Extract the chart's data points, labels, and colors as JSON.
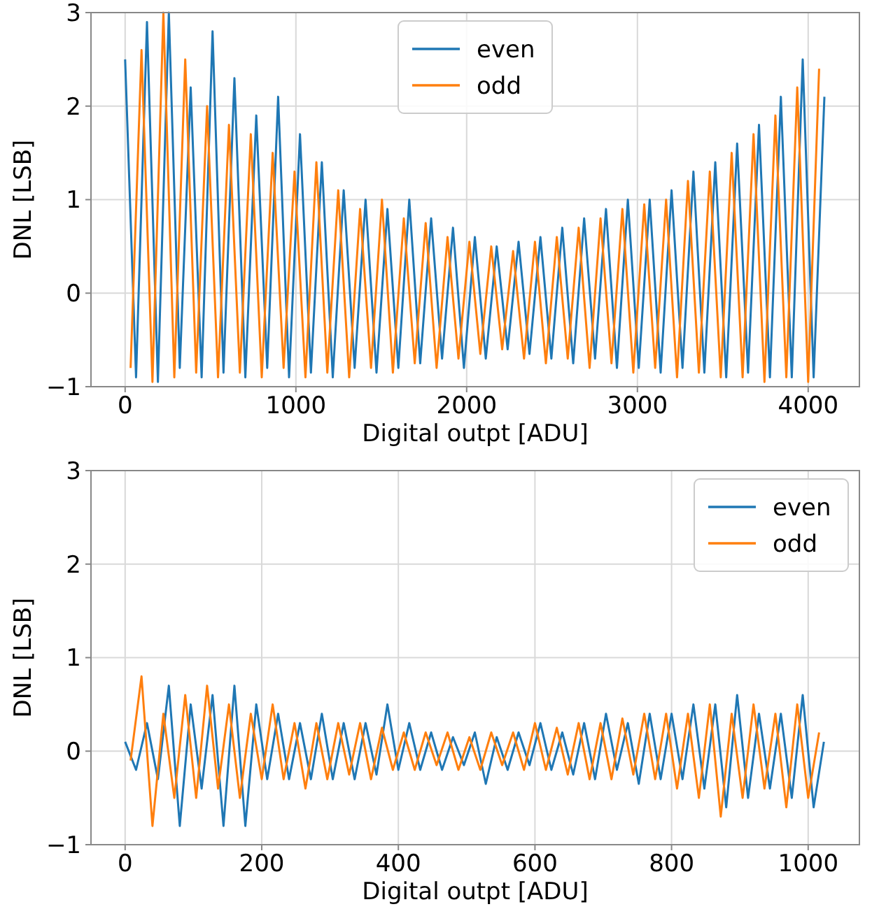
{
  "chart_data": [
    {
      "type": "line",
      "xlabel": "Digital outpt [ADU]",
      "ylabel": "DNL [LSB]",
      "xlim": [
        -200,
        4300
      ],
      "ylim": [
        -1,
        3
      ],
      "xticks": [
        0,
        1000,
        2000,
        3000,
        4000
      ],
      "yticks": [
        -1,
        0,
        1,
        2,
        3
      ],
      "grid": true,
      "legend": "top",
      "series": [
        {
          "name": "even",
          "color": "#1f77b4",
          "x": [
            0,
            64,
            128,
            192,
            256,
            320,
            384,
            448,
            512,
            576,
            640,
            704,
            768,
            832,
            896,
            960,
            1024,
            1088,
            1152,
            1216,
            1280,
            1344,
            1408,
            1472,
            1536,
            1600,
            1664,
            1728,
            1792,
            1856,
            1920,
            1984,
            2048,
            2112,
            2176,
            2240,
            2304,
            2368,
            2432,
            2496,
            2560,
            2624,
            2688,
            2752,
            2816,
            2880,
            2944,
            3008,
            3072,
            3136,
            3200,
            3264,
            3328,
            3392,
            3456,
            3520,
            3584,
            3648,
            3712,
            3776,
            3840,
            3904,
            3968,
            4032,
            4095
          ],
          "values": [
            2.5,
            -0.9,
            2.9,
            -0.95,
            3.0,
            -0.8,
            2.2,
            -0.9,
            2.8,
            -0.85,
            2.3,
            -0.9,
            1.9,
            -0.8,
            2.1,
            -0.9,
            1.7,
            -0.85,
            1.4,
            -0.9,
            1.1,
            -0.8,
            1.0,
            -0.85,
            0.9,
            -0.8,
            1.0,
            -0.75,
            0.8,
            -0.7,
            0.7,
            -0.8,
            0.6,
            -0.7,
            0.5,
            -0.6,
            0.55,
            -0.65,
            0.6,
            -0.7,
            0.7,
            -0.75,
            0.8,
            -0.7,
            0.9,
            -0.8,
            1.0,
            -0.8,
            1.0,
            -0.85,
            1.1,
            -0.8,
            1.3,
            -0.85,
            1.4,
            -0.9,
            1.6,
            -0.85,
            1.8,
            -0.9,
            2.1,
            -0.9,
            2.5,
            -0.9,
            2.1
          ]
        },
        {
          "name": "odd",
          "color": "#ff7f0e",
          "x": [
            32,
            96,
            160,
            224,
            288,
            352,
            416,
            480,
            544,
            608,
            672,
            736,
            800,
            864,
            928,
            992,
            1056,
            1120,
            1184,
            1248,
            1312,
            1376,
            1440,
            1504,
            1568,
            1632,
            1696,
            1760,
            1824,
            1888,
            1952,
            2016,
            2080,
            2144,
            2208,
            2272,
            2336,
            2400,
            2464,
            2528,
            2592,
            2656,
            2720,
            2784,
            2848,
            2912,
            2976,
            3040,
            3104,
            3168,
            3232,
            3296,
            3360,
            3424,
            3488,
            3552,
            3616,
            3680,
            3744,
            3808,
            3872,
            3936,
            4000,
            4064
          ],
          "values": [
            -0.8,
            2.6,
            -0.95,
            3.0,
            -0.9,
            2.5,
            -0.85,
            2.0,
            -0.9,
            1.8,
            -0.85,
            1.7,
            -0.9,
            1.5,
            -0.8,
            1.3,
            -0.9,
            1.4,
            -0.85,
            1.1,
            -0.9,
            0.9,
            -0.8,
            1.0,
            -0.85,
            0.8,
            -0.75,
            0.75,
            -0.8,
            0.6,
            -0.7,
            0.55,
            -0.65,
            0.5,
            -0.6,
            0.45,
            -0.7,
            0.55,
            -0.75,
            0.6,
            -0.7,
            0.7,
            -0.8,
            0.8,
            -0.75,
            0.9,
            -0.85,
            0.95,
            -0.8,
            1.0,
            -0.9,
            1.2,
            -0.85,
            1.3,
            -0.9,
            1.5,
            -0.9,
            1.7,
            -0.95,
            1.9,
            -0.9,
            2.2,
            -0.95,
            2.4
          ]
        }
      ]
    },
    {
      "type": "line",
      "xlabel": "Digital outpt [ADU]",
      "ylabel": "DNL [LSB]",
      "xlim": [
        -50,
        1075
      ],
      "ylim": [
        -1,
        3
      ],
      "xticks": [
        0,
        200,
        400,
        600,
        800,
        1000
      ],
      "yticks": [
        -1,
        0,
        1,
        2,
        3
      ],
      "grid": true,
      "legend": "top right",
      "series": [
        {
          "name": "even",
          "color": "#1f77b4",
          "x": [
            0,
            16,
            32,
            48,
            64,
            80,
            96,
            112,
            128,
            144,
            160,
            176,
            192,
            208,
            224,
            240,
            256,
            272,
            288,
            304,
            320,
            336,
            352,
            368,
            384,
            400,
            416,
            432,
            448,
            464,
            480,
            496,
            512,
            528,
            544,
            560,
            576,
            592,
            608,
            624,
            640,
            656,
            672,
            688,
            704,
            720,
            736,
            752,
            768,
            784,
            800,
            816,
            832,
            848,
            864,
            880,
            896,
            912,
            928,
            944,
            960,
            976,
            992,
            1008,
            1023
          ],
          "values": [
            0.1,
            -0.2,
            0.3,
            -0.3,
            0.7,
            -0.8,
            0.5,
            -0.4,
            0.6,
            -0.8,
            0.7,
            -0.8,
            0.5,
            -0.3,
            0.4,
            -0.3,
            0.3,
            -0.3,
            0.4,
            -0.3,
            0.3,
            -0.3,
            0.3,
            -0.25,
            0.5,
            -0.2,
            0.3,
            -0.2,
            0.2,
            -0.2,
            0.15,
            -0.15,
            0.2,
            -0.35,
            0.15,
            -0.2,
            0.2,
            -0.15,
            0.3,
            -0.2,
            0.2,
            -0.25,
            0.3,
            -0.3,
            0.4,
            -0.2,
            0.3,
            -0.35,
            0.4,
            -0.3,
            0.4,
            -0.3,
            0.5,
            -0.4,
            0.5,
            -0.6,
            0.6,
            -0.5,
            0.4,
            -0.4,
            0.4,
            -0.5,
            0.6,
            -0.6,
            0.1
          ]
        },
        {
          "name": "odd",
          "color": "#ff7f0e",
          "x": [
            8,
            24,
            40,
            56,
            72,
            88,
            104,
            120,
            136,
            152,
            168,
            184,
            200,
            216,
            232,
            248,
            264,
            280,
            296,
            312,
            328,
            344,
            360,
            376,
            392,
            408,
            424,
            440,
            456,
            472,
            488,
            504,
            520,
            536,
            552,
            568,
            584,
            600,
            616,
            632,
            648,
            664,
            680,
            696,
            712,
            728,
            744,
            760,
            776,
            792,
            808,
            824,
            840,
            856,
            872,
            888,
            904,
            920,
            936,
            952,
            968,
            984,
            1000,
            1016
          ],
          "values": [
            -0.1,
            0.8,
            -0.8,
            0.4,
            -0.5,
            0.6,
            -0.5,
            0.7,
            -0.4,
            0.5,
            -0.5,
            0.4,
            -0.3,
            0.5,
            -0.3,
            0.3,
            -0.4,
            0.3,
            -0.3,
            0.3,
            -0.25,
            0.3,
            -0.3,
            0.25,
            -0.2,
            0.2,
            -0.2,
            0.2,
            -0.15,
            0.2,
            -0.2,
            0.15,
            -0.2,
            0.2,
            -0.15,
            0.2,
            -0.2,
            0.3,
            -0.2,
            0.25,
            -0.25,
            0.3,
            -0.3,
            0.3,
            -0.3,
            0.35,
            -0.25,
            0.4,
            -0.3,
            0.4,
            -0.4,
            0.4,
            -0.5,
            0.5,
            -0.7,
            0.4,
            -0.5,
            0.5,
            -0.4,
            0.4,
            -0.6,
            0.5,
            -0.5,
            0.2
          ]
        }
      ]
    }
  ]
}
